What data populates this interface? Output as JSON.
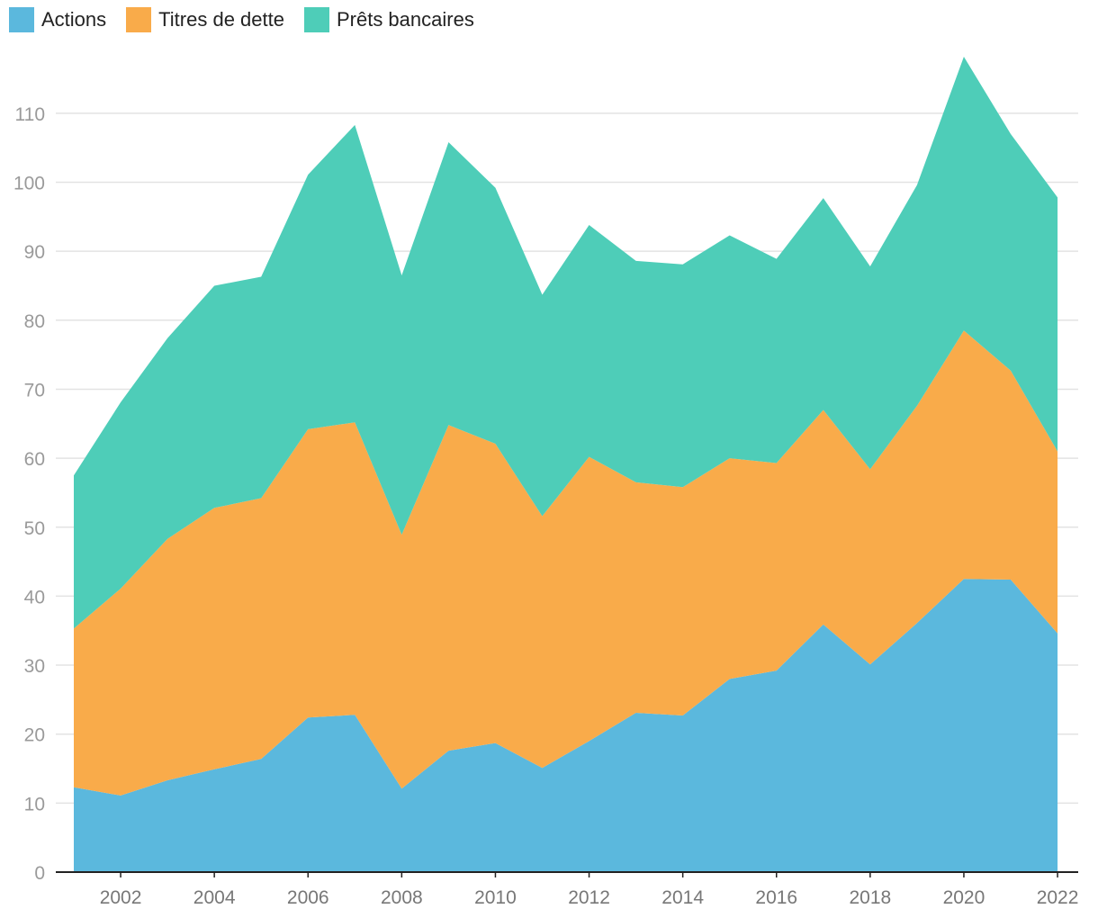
{
  "chart_data": {
    "type": "area",
    "stacked": true,
    "legend_position": "top-left",
    "grid": true,
    "x": [
      2001,
      2002,
      2003,
      2004,
      2005,
      2006,
      2007,
      2008,
      2009,
      2010,
      2011,
      2012,
      2013,
      2014,
      2015,
      2016,
      2017,
      2018,
      2019,
      2020,
      2021,
      2022
    ],
    "x_ticks": [
      "2002",
      "2004",
      "2006",
      "2008",
      "2010",
      "2012",
      "2014",
      "2016",
      "2018",
      "2020",
      "2022"
    ],
    "y_ticks": [
      "0",
      "10",
      "20",
      "30",
      "40",
      "50",
      "60",
      "70",
      "80",
      "90",
      "100",
      "110"
    ],
    "ylim": [
      0,
      118
    ],
    "series": [
      {
        "name": "Actions",
        "color": "#5bb8dd",
        "values": [
          12.3,
          11.1,
          13.3,
          14.9,
          16.4,
          22.4,
          22.8,
          12.1,
          17.6,
          18.7,
          15.1,
          19.0,
          23.1,
          22.7,
          28.0,
          29.2,
          35.9,
          30.1,
          36.1,
          42.5,
          42.4,
          34.6
        ]
      },
      {
        "name": "Titres de dette",
        "color": "#f9ab4a",
        "values": [
          23.0,
          30.0,
          35.0,
          37.9,
          37.8,
          41.8,
          42.4,
          36.8,
          47.2,
          43.4,
          36.5,
          41.2,
          33.4,
          33.1,
          32.0,
          30.1,
          31.1,
          28.3,
          31.5,
          36.0,
          30.3,
          26.4
        ]
      },
      {
        "name": "Prêts bancaires",
        "color": "#4ecdb8",
        "values": [
          22.2,
          27.0,
          29.1,
          32.2,
          32.1,
          36.9,
          43.1,
          37.6,
          41.0,
          37.1,
          32.1,
          33.6,
          32.1,
          32.3,
          32.3,
          29.6,
          30.7,
          29.4,
          32.0,
          39.7,
          34.3,
          36.8
        ]
      }
    ]
  }
}
